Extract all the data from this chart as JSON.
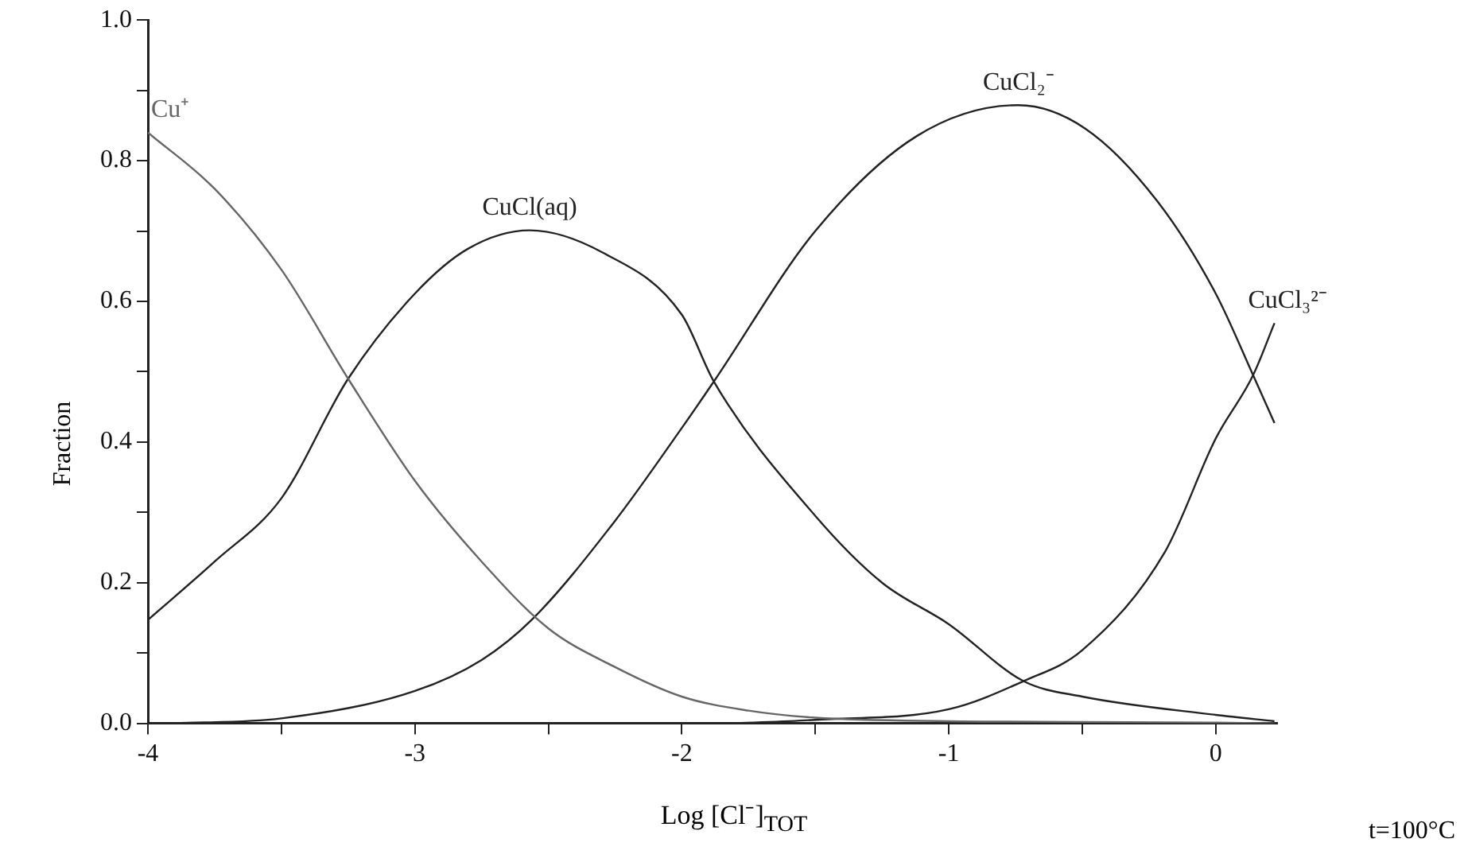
{
  "chart_data": {
    "type": "line",
    "xlabel": "Log [Cl⁻]$_{TOT}$",
    "ylabel": "Fraction",
    "xlim": [
      -4,
      0.23
    ],
    "ylim": [
      0,
      1
    ],
    "xticks": [
      -4,
      {
        "value": -3.5,
        "label": null
      },
      -3,
      {
        "value": -2.5,
        "label": null
      },
      -2,
      {
        "value": -1.5,
        "label": null
      },
      -1,
      {
        "value": -0.5,
        "label": null
      },
      0
    ],
    "yticks": [
      {
        "value": 0,
        "label": "0.0"
      },
      {
        "value": 0.1,
        "label": null
      },
      {
        "value": 0.2,
        "label": "0.2"
      },
      {
        "value": 0.3,
        "label": null
      },
      {
        "value": 0.4,
        "label": "0.4"
      },
      {
        "value": 0.5,
        "label": null
      },
      {
        "value": 0.6,
        "label": "0.6"
      },
      {
        "value": 0.7,
        "label": null
      },
      {
        "value": 0.8,
        "label": "0.8"
      },
      {
        "value": 0.9,
        "label": null
      },
      {
        "value": 1,
        "label": "1.0"
      }
    ],
    "grid": false,
    "legend": false,
    "marker": "none",
    "line_style": "solid",
    "series": [
      {
        "name": "Cu⁺",
        "color": "#666666",
        "x": [
          -4,
          -3.75,
          -3.5,
          -3.25,
          -3,
          -2.75,
          -2.5,
          -2.25,
          -2,
          -1.75,
          -1.5,
          -1,
          -0.5,
          0,
          0.22
        ],
        "values": [
          0.84,
          0.76,
          0.645,
          0.49,
          0.345,
          0.23,
          0.135,
          0.08,
          0.038,
          0.018,
          0.008,
          0.003,
          0.002,
          0.001,
          0
        ]
      },
      {
        "name": "CuCl(aq)",
        "color": "#222222",
        "x": [
          -4,
          -3.75,
          -3.5,
          -3.25,
          -3,
          -2.8,
          -2.57,
          -2.3,
          -2,
          -1.88,
          -1.5,
          -1.25,
          -1,
          -0.72,
          -0.5,
          0,
          0.22
        ],
        "values": [
          0.147,
          0.23,
          0.32,
          0.49,
          0.611,
          0.675,
          0.701,
          0.67,
          0.581,
          0.486,
          0.295,
          0.2,
          0.141,
          0.06,
          0.038,
          0.012,
          0.003
        ]
      },
      {
        "name": "CuCl₂⁻",
        "color": "#222222",
        "x": [
          -3.9,
          -3.5,
          -3,
          -2.75,
          -2.56,
          -2.25,
          -2,
          -1.88,
          -1.5,
          -1.12,
          -0.74,
          -0.49,
          -0.22,
          0,
          0.14,
          0.22
        ],
        "values": [
          0,
          0.007,
          0.046,
          0.09,
          0.148,
          0.288,
          0.42,
          0.486,
          0.7,
          0.835,
          0.879,
          0.846,
          0.743,
          0.611,
          0.495,
          0.427
        ]
      },
      {
        "name": "CuCl₃²⁻",
        "color": "#222222",
        "x": [
          -1.8,
          -1.5,
          -1,
          -0.72,
          -0.5,
          -0.19,
          0,
          0.14,
          0.22
        ],
        "values": [
          0,
          0.005,
          0.02,
          0.06,
          0.104,
          0.244,
          0.405,
          0.495,
          0.569
        ]
      }
    ],
    "annotations": [
      "t=100°C"
    ]
  }
}
